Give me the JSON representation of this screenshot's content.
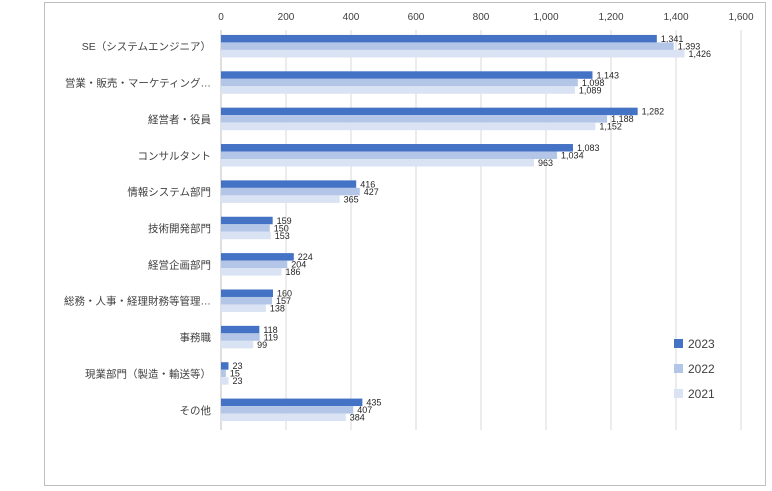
{
  "chart_data": {
    "type": "bar",
    "orientation": "horizontal",
    "categories": [
      "SE（システムエンジニア）",
      "営業・販売・マーケティング…",
      "経営者・役員",
      "コンサルタント",
      "情報システム部門",
      "技術開発部門",
      "経営企画部門",
      "総務・人事・経理財務等管理…",
      "事務職",
      "現業部門（製造・輸送等）",
      "その他"
    ],
    "series": [
      {
        "name": "2023",
        "color": "#4472c4",
        "values": [
          1341,
          1143,
          1282,
          1083,
          416,
          159,
          224,
          160,
          118,
          23,
          435
        ],
        "labels": [
          "1,341",
          "1,143",
          "1,282",
          "1,083",
          "416",
          "159",
          "224",
          "160",
          "118",
          "23",
          "435"
        ]
      },
      {
        "name": "2022",
        "color": "#b4c6e7",
        "values": [
          1393,
          1098,
          1188,
          1034,
          427,
          150,
          204,
          157,
          119,
          15,
          407
        ],
        "labels": [
          "1,393",
          "1,098",
          "1,188",
          "1,034",
          "427",
          "150",
          "204",
          "157",
          "119",
          "15",
          "407"
        ]
      },
      {
        "name": "2021",
        "color": "#dae3f3",
        "values": [
          1426,
          1089,
          1152,
          963,
          365,
          153,
          186,
          138,
          99,
          23,
          384
        ],
        "labels": [
          "1,426",
          "1,089",
          "1,152",
          "963",
          "365",
          "153",
          "186",
          "138",
          "99",
          "23",
          "384"
        ]
      }
    ],
    "xlim": [
      0,
      1600
    ],
    "ticks": [
      0,
      200,
      400,
      600,
      800,
      1000,
      1200,
      1400,
      1600
    ],
    "tick_labels": [
      "0",
      "200",
      "400",
      "600",
      "800",
      "1,000",
      "1,200",
      "1,400",
      "1,600"
    ],
    "grid": true,
    "legend_position": "right",
    "title": "",
    "xlabel": "",
    "ylabel": ""
  }
}
